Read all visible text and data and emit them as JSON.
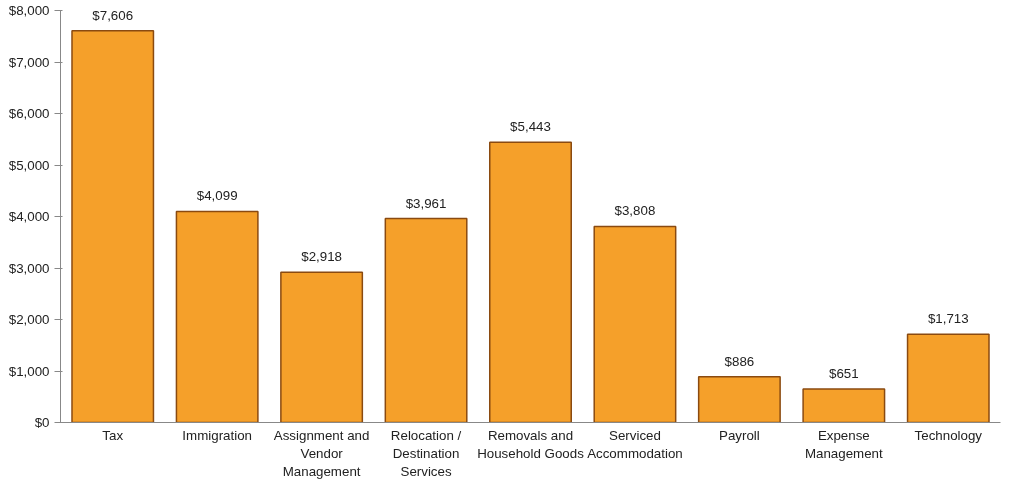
{
  "chart_data": {
    "type": "bar",
    "categories": [
      "Tax",
      "Immigration",
      "Assignment and Vendor Management",
      "Relocation / Destination Services",
      "Removals and Household Goods",
      "Serviced Accommodation",
      "Payroll",
      "Expense Management",
      "Technology"
    ],
    "values": [
      7606,
      4099,
      2918,
      3961,
      5443,
      3808,
      886,
      651,
      1713
    ],
    "value_labels": [
      "$7,606",
      "$4,099",
      "$2,918",
      "$3,961",
      "$5,443",
      "$3,808",
      "$886",
      "$651",
      "$1,713"
    ],
    "color": "#f5a02a",
    "ylim": [
      0,
      8000
    ],
    "yticks": [
      {
        "value": 0,
        "label": "$0"
      },
      {
        "value": 1000,
        "label": "$1,000"
      },
      {
        "value": 2000,
        "label": "$2,000"
      },
      {
        "value": 3000,
        "label": "$3,000"
      },
      {
        "value": 4000,
        "label": "$4,000"
      },
      {
        "value": 5000,
        "label": "$5,000"
      },
      {
        "value": 6000,
        "label": "$6,000"
      },
      {
        "value": 7000,
        "label": "$7,000"
      },
      {
        "value": 8000,
        "label": "$8,000"
      }
    ],
    "grid": false
  }
}
